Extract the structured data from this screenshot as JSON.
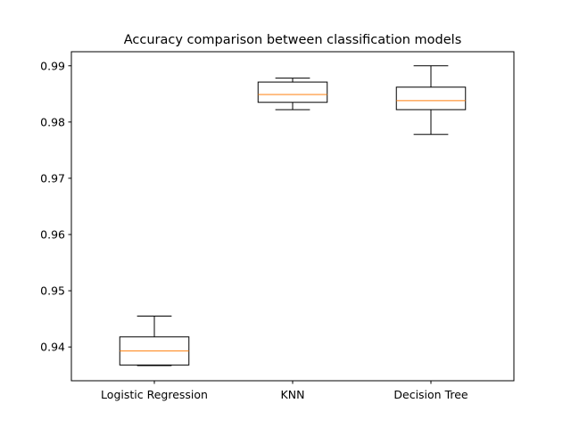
{
  "chart_data": {
    "type": "boxplot",
    "title": "Accuracy comparison between classification models",
    "xlabel": "",
    "ylabel": "",
    "categories": [
      "Logistic Regression",
      "KNN",
      "Decision Tree"
    ],
    "boxes": [
      {
        "whisker_low": 0.9367,
        "q1": 0.9368,
        "median": 0.9393,
        "q3": 0.9418,
        "whisker_high": 0.9455
      },
      {
        "whisker_low": 0.9822,
        "q1": 0.9835,
        "median": 0.9849,
        "q3": 0.9871,
        "whisker_high": 0.9878
      },
      {
        "whisker_low": 0.9778,
        "q1": 0.9822,
        "median": 0.9838,
        "q3": 0.9862,
        "whisker_high": 0.99
      }
    ],
    "ylim": [
      0.934,
      0.9925
    ],
    "yticks": [
      0.94,
      0.95,
      0.96,
      0.97,
      0.98,
      0.99
    ],
    "ytick_labels": [
      "0.94",
      "0.95",
      "0.96",
      "0.97",
      "0.98",
      "0.99"
    ],
    "grid": false,
    "legend": "none",
    "colors": {
      "box": "#000000",
      "median": "#ff7f0e",
      "axes": "#000000",
      "background": "#ffffff"
    }
  }
}
